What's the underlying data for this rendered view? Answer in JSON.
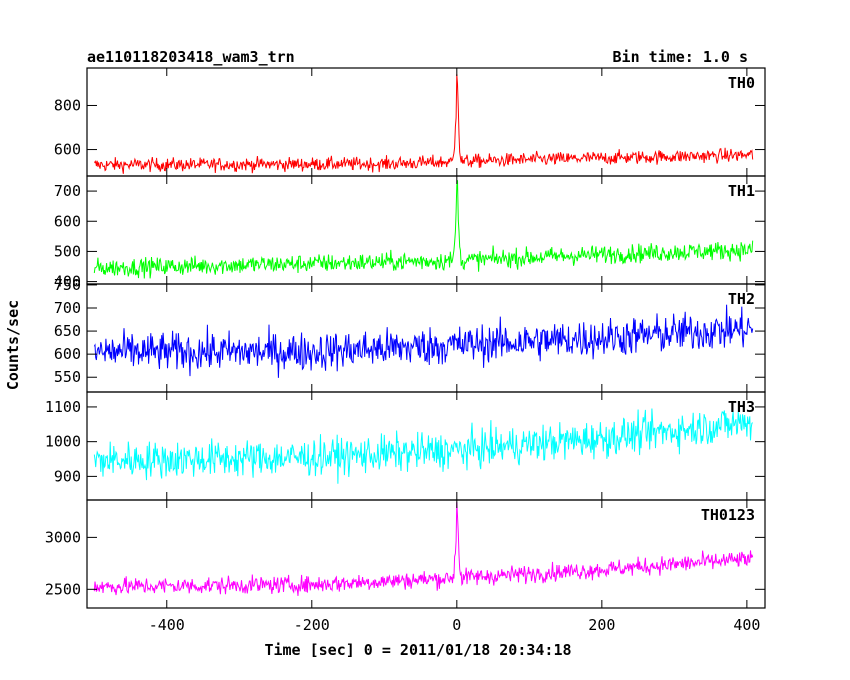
{
  "chart_data": {
    "type": "line",
    "title": "ae110118203418_wam3_trn",
    "subtitle": "Bin time: 1.0 s",
    "xlabel": "Time [sec] 0 = 2011/01/18 20:34:18",
    "ylabel": "Counts/sec",
    "xlim": [
      -510,
      425
    ],
    "xticks": [
      -400,
      -200,
      0,
      200,
      400
    ],
    "grid": false,
    "panels": [
      {
        "name": "TH0",
        "color": "#ff0000",
        "ylim": [
          480,
          970
        ],
        "yticks": [
          600,
          800
        ],
        "trend": [
          [
            -500,
            530
          ],
          [
            -100,
            535
          ],
          [
            0,
            545
          ],
          [
            100,
            555
          ],
          [
            400,
            575
          ]
        ],
        "noise": 22,
        "spike": {
          "x": 0,
          "peak": 965,
          "width": 2
        }
      },
      {
        "name": "TH1",
        "color": "#00ff00",
        "ylim": [
          392,
          750
        ],
        "yticks": [
          400,
          500,
          600,
          700
        ],
        "trend": [
          [
            -500,
            445
          ],
          [
            -200,
            460
          ],
          [
            0,
            470
          ],
          [
            200,
            490
          ],
          [
            400,
            505
          ]
        ],
        "noise": 22,
        "spike": {
          "x": 0,
          "peak": 745,
          "width": 2
        }
      },
      {
        "name": "TH2",
        "color": "#0000ff",
        "ylim": [
          518,
          752
        ],
        "yticks": [
          550,
          600,
          650,
          700,
          750
        ],
        "trend": [
          [
            -500,
            605
          ],
          [
            -200,
            605
          ],
          [
            0,
            620
          ],
          [
            200,
            635
          ],
          [
            400,
            655
          ]
        ],
        "noise": 30,
        "spike": null
      },
      {
        "name": "TH3",
        "color": "#00ffff",
        "ylim": [
          832,
          1143
        ],
        "yticks": [
          900,
          1000,
          1100
        ],
        "trend": [
          [
            -500,
            945
          ],
          [
            -200,
            955
          ],
          [
            0,
            975
          ],
          [
            200,
            1010
          ],
          [
            400,
            1055
          ]
        ],
        "noise": 38,
        "spike": null
      },
      {
        "name": "TH0123",
        "color": "#ff00ff",
        "ylim": [
          2320,
          3360
        ],
        "yticks": [
          2500,
          3000
        ],
        "trend": [
          [
            -500,
            2525
          ],
          [
            -200,
            2545
          ],
          [
            0,
            2610
          ],
          [
            200,
            2690
          ],
          [
            400,
            2790
          ]
        ],
        "noise": 60,
        "spike": {
          "x": 0,
          "peak": 3340,
          "width": 2
        }
      }
    ]
  }
}
